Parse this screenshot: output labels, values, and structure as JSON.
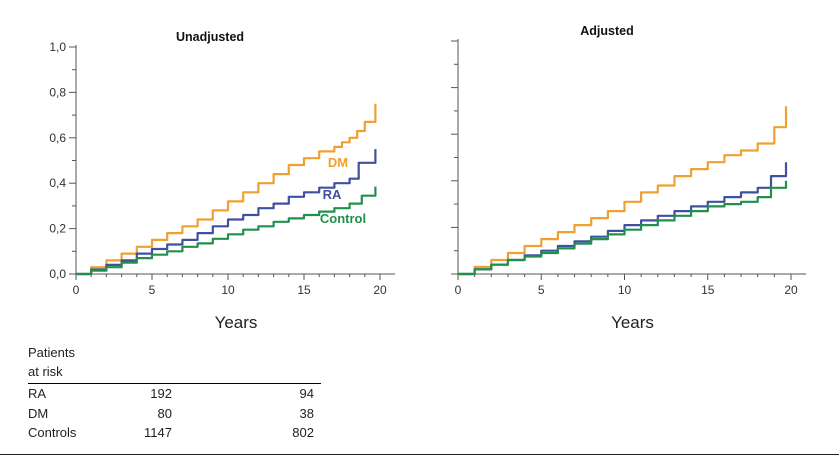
{
  "chart_data": [
    {
      "type": "line",
      "title": "Unadjusted",
      "xlabel": "Years",
      "ylabel": "",
      "xlim": [
        0,
        20
      ],
      "ylim": [
        0,
        1.0
      ],
      "x_ticks": [
        "0",
        "5",
        "10",
        "15",
        "20"
      ],
      "y_ticks": [
        "0,0",
        "0,2",
        "0,4",
        "0,6",
        "0,8",
        "1,0"
      ],
      "series": [
        {
          "name": "DM",
          "color": "#f0a030",
          "x": [
            0,
            1,
            2,
            3,
            4,
            5,
            6,
            7,
            8,
            9,
            10,
            11,
            12,
            13,
            14,
            15,
            16,
            17,
            17.5,
            18,
            18.5,
            19,
            19.5,
            19.7,
            19.7
          ],
          "y": [
            0,
            0.03,
            0.06,
            0.09,
            0.12,
            0.15,
            0.18,
            0.21,
            0.24,
            0.28,
            0.32,
            0.36,
            0.4,
            0.44,
            0.48,
            0.51,
            0.54,
            0.56,
            0.58,
            0.6,
            0.63,
            0.67,
            0.67,
            0.67,
            0.75
          ]
        },
        {
          "name": "RA",
          "color": "#4050a0",
          "x": [
            0,
            1,
            2,
            3,
            4,
            5,
            6,
            7,
            8,
            9,
            10,
            11,
            12,
            13,
            14,
            15,
            16,
            17,
            18,
            18.6,
            19.7,
            19.7
          ],
          "y": [
            0,
            0.02,
            0.04,
            0.06,
            0.09,
            0.11,
            0.13,
            0.15,
            0.18,
            0.21,
            0.24,
            0.26,
            0.29,
            0.31,
            0.34,
            0.36,
            0.38,
            0.4,
            0.42,
            0.49,
            0.49,
            0.55
          ]
        },
        {
          "name": "Control",
          "color": "#20904a",
          "x": [
            0,
            1,
            2,
            3,
            4,
            5,
            6,
            7,
            8,
            9,
            10,
            11,
            12,
            13,
            14,
            15,
            16,
            17,
            18,
            18.8,
            19.7,
            19.7
          ],
          "y": [
            0,
            0.015,
            0.03,
            0.05,
            0.07,
            0.085,
            0.1,
            0.12,
            0.135,
            0.155,
            0.175,
            0.195,
            0.21,
            0.23,
            0.245,
            0.26,
            0.275,
            0.29,
            0.31,
            0.345,
            0.345,
            0.385
          ]
        }
      ]
    },
    {
      "type": "line",
      "title": "Adjusted",
      "xlabel": "Years",
      "ylabel": "",
      "xlim": [
        0,
        20
      ],
      "ylim": [
        0,
        1.0
      ],
      "x_ticks": [
        "0",
        "5",
        "10",
        "15",
        "20"
      ],
      "y_ticks": [],
      "series": [
        {
          "name": "DM",
          "color": "#f0a030",
          "x": [
            0,
            1,
            2,
            3,
            4,
            5,
            6,
            7,
            8,
            9,
            10,
            11,
            12,
            13,
            14,
            15,
            16,
            17,
            18,
            19,
            19.7,
            19.7
          ],
          "y": [
            0,
            0.03,
            0.06,
            0.09,
            0.12,
            0.15,
            0.18,
            0.21,
            0.24,
            0.27,
            0.31,
            0.35,
            0.38,
            0.42,
            0.45,
            0.48,
            0.51,
            0.53,
            0.56,
            0.63,
            0.63,
            0.72
          ]
        },
        {
          "name": "RA",
          "color": "#4050a0",
          "x": [
            0,
            1,
            2,
            3,
            4,
            5,
            6,
            7,
            8,
            9,
            10,
            11,
            12,
            13,
            14,
            15,
            16,
            17,
            18,
            18.8,
            19.7,
            19.7
          ],
          "y": [
            0,
            0.02,
            0.04,
            0.06,
            0.08,
            0.1,
            0.12,
            0.14,
            0.16,
            0.185,
            0.21,
            0.23,
            0.25,
            0.27,
            0.29,
            0.31,
            0.33,
            0.35,
            0.37,
            0.42,
            0.42,
            0.48
          ]
        },
        {
          "name": "Control",
          "color": "#20904a",
          "x": [
            0,
            1,
            2,
            3,
            4,
            5,
            6,
            7,
            8,
            9,
            10,
            11,
            12,
            13,
            14,
            15,
            16,
            17,
            18,
            18.8,
            19.7,
            19.7
          ],
          "y": [
            0,
            0.02,
            0.04,
            0.06,
            0.075,
            0.09,
            0.11,
            0.13,
            0.15,
            0.17,
            0.19,
            0.21,
            0.23,
            0.25,
            0.27,
            0.29,
            0.3,
            0.31,
            0.33,
            0.37,
            0.37,
            0.4
          ]
        }
      ]
    }
  ],
  "series_labels": {
    "dm": "DM",
    "ra": "RA",
    "control": "Control"
  },
  "risk_table": {
    "header": [
      "Patients",
      "at risk"
    ],
    "rows": [
      {
        "name": "RA",
        "v1": "192",
        "v2": "94"
      },
      {
        "name": "DM",
        "v1": "80",
        "v2": "38"
      },
      {
        "name": "Controls",
        "v1": "1147",
        "v2": "802"
      }
    ]
  }
}
